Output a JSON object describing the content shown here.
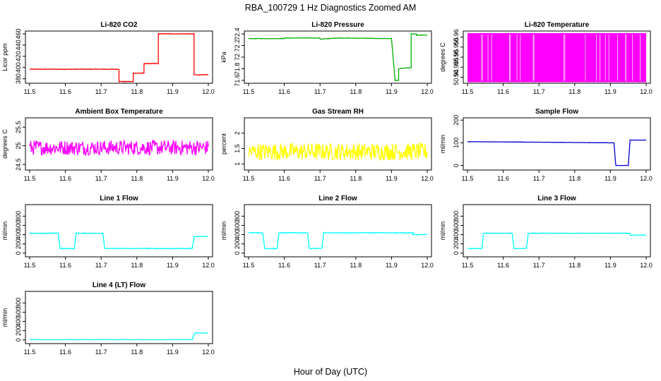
{
  "figure": {
    "title": "RBA_100729  1 Hz Diagnostics Zoomed AM",
    "xlabel": "Hour of Day (UTC)"
  },
  "chart_data": [
    {
      "type": "line",
      "title": "Li-820 CO2",
      "ylabel": "Licor ppm",
      "color": "#ff0000",
      "xlim": [
        11.5,
        12.0
      ],
      "xticks": [
        "11.5",
        "11.6",
        "11.7",
        "11.8",
        "11.9",
        "12.0"
      ],
      "ylim": [
        372,
        465
      ],
      "yticks": [
        380,
        400,
        420,
        440,
        460
      ],
      "noise": 0.6,
      "series": [
        {
          "segments": [
            [
              11.5,
              11.65,
              397,
              397
            ],
            [
              11.65,
              11.75,
              397,
              397
            ],
            [
              11.75,
              11.76,
              375,
              375
            ],
            [
              11.76,
              11.79,
              375,
              375
            ],
            [
              11.79,
              11.82,
              390,
              390
            ],
            [
              11.82,
              11.85,
              407,
              407
            ],
            [
              11.85,
              11.86,
              407,
              407
            ],
            [
              11.86,
              11.96,
              460,
              460
            ],
            [
              11.96,
              12.0,
              387,
              387
            ]
          ]
        }
      ]
    },
    {
      "type": "line",
      "title": "Li-820 Pressure",
      "ylabel": "kPa",
      "color": "#00b000",
      "xlim": [
        11.5,
        12.0
      ],
      "xticks": [
        "11.5",
        "11.6",
        "11.7",
        "11.8",
        "11.9",
        "12.0"
      ],
      "ylim": [
        71.55,
        72.45
      ],
      "yticks": [
        71.6,
        71.8,
        72.0,
        72.2,
        72.4
      ],
      "noise": 0.004,
      "series": [
        {
          "segments": [
            [
              11.5,
              11.6,
              72.32,
              72.32
            ],
            [
              11.6,
              11.7,
              72.33,
              72.33
            ],
            [
              11.7,
              11.75,
              72.31,
              72.33
            ],
            [
              11.75,
              11.9,
              72.33,
              72.32
            ],
            [
              11.9,
              11.91,
              72.32,
              71.6
            ],
            [
              11.91,
              11.92,
              71.6,
              71.6
            ],
            [
              11.92,
              11.955,
              71.8,
              71.82
            ],
            [
              11.955,
              11.97,
              72.4,
              72.4
            ],
            [
              11.97,
              12.0,
              72.38,
              72.38
            ]
          ]
        }
      ]
    },
    {
      "type": "line",
      "title": "Li-820 Temperature",
      "ylabel": "degrees C",
      "color": "#ff00ff",
      "xlim": [
        11.5,
        12.0
      ],
      "xticks": [
        "11.5",
        "11.6",
        "11.7",
        "11.8",
        "11.9",
        "12.0"
      ],
      "ylim": [
        50.937,
        50.963
      ],
      "yticks": [
        50.94,
        50.945,
        50.95,
        50.955,
        50.96
      ],
      "noise": 0.0,
      "series": [
        {
          "fill": true,
          "values": [
            50.9375,
            50.962
          ]
        }
      ]
    },
    {
      "type": "line",
      "title": "Ambient Box Temperature",
      "ylabel": "degrees C",
      "color": "#ff00ff",
      "xlim": [
        11.5,
        12.0
      ],
      "xticks": [
        "11.5",
        "11.6",
        "11.7",
        "11.8",
        "11.9",
        "12.0"
      ],
      "ylim": [
        24.35,
        25.75
      ],
      "yticks": [
        24.5,
        25.0,
        25.5
      ],
      "noise": 0.2,
      "series": [
        {
          "segments": [
            [
              11.5,
              12.0,
              24.95,
              24.95
            ]
          ]
        }
      ]
    },
    {
      "type": "line",
      "title": "Gas Stream RH",
      "ylabel": "percent",
      "color": "#ffff00",
      "xlim": [
        11.5,
        12.0
      ],
      "xticks": [
        "11.5",
        "11.6",
        "11.7",
        "11.8",
        "11.9",
        "12.0"
      ],
      "ylim": [
        0.8,
        2.5
      ],
      "yticks": [
        1.0,
        1.5,
        2.0
      ],
      "noise": 0.28,
      "series": [
        {
          "segments": [
            [
              11.5,
              12.0,
              1.4,
              1.4
            ]
          ]
        }
      ]
    },
    {
      "type": "line",
      "title": "Sample Flow",
      "ylabel": "ml/min",
      "color": "#0000cc",
      "xlim": [
        11.5,
        12.0
      ],
      "xticks": [
        "11.5",
        "11.6",
        "11.7",
        "11.8",
        "11.9",
        "12.0"
      ],
      "ylim": [
        -20,
        210
      ],
      "yticks": [
        0,
        100,
        200
      ],
      "noise": 0.6,
      "series": [
        {
          "segments": [
            [
              11.5,
              11.91,
              105,
              100
            ],
            [
              11.91,
              11.915,
              100,
              0
            ],
            [
              11.915,
              11.95,
              0,
              0
            ],
            [
              11.95,
              11.955,
              0,
              112
            ],
            [
              11.955,
              12.0,
              112,
              112
            ]
          ]
        }
      ]
    },
    {
      "type": "line",
      "title": "Line 1 Flow",
      "ylabel": "ml/min",
      "color": "#00ffff",
      "xlim": [
        11.5,
        12.0
      ],
      "xticks": [
        "11.5",
        "11.6",
        "11.7",
        "11.8",
        "11.9",
        "12.0"
      ],
      "ylim": [
        -80,
        1050
      ],
      "yticks": [
        0,
        200,
        400,
        600,
        800
      ],
      "noise": 8,
      "series": [
        {
          "segments": [
            [
              11.5,
              11.58,
              430,
              430
            ],
            [
              11.58,
              11.585,
              430,
              100
            ],
            [
              11.585,
              11.625,
              100,
              100
            ],
            [
              11.625,
              11.63,
              100,
              430
            ],
            [
              11.63,
              11.705,
              430,
              430
            ],
            [
              11.705,
              11.71,
              430,
              100
            ],
            [
              11.71,
              11.955,
              100,
              100
            ],
            [
              11.955,
              11.96,
              100,
              360
            ],
            [
              11.96,
              12.0,
              360,
              360
            ]
          ]
        }
      ]
    },
    {
      "type": "line",
      "title": "Line 2 Flow",
      "ylabel": "ml/min",
      "color": "#00ffff",
      "xlim": [
        11.5,
        12.0
      ],
      "xticks": [
        "11.5",
        "11.6",
        "11.7",
        "11.8",
        "11.9",
        "12.0"
      ],
      "ylim": [
        -80,
        1050
      ],
      "yticks": [
        0,
        200,
        400,
        600,
        800
      ],
      "noise": 8,
      "series": [
        {
          "segments": [
            [
              11.5,
              11.54,
              440,
              440
            ],
            [
              11.54,
              11.545,
              440,
              100
            ],
            [
              11.545,
              11.58,
              100,
              100
            ],
            [
              11.58,
              11.585,
              100,
              440
            ],
            [
              11.585,
              11.665,
              440,
              440
            ],
            [
              11.665,
              11.67,
              440,
              100
            ],
            [
              11.67,
              11.705,
              100,
              100
            ],
            [
              11.705,
              11.71,
              100,
              440
            ],
            [
              11.71,
              11.96,
              440,
              440
            ],
            [
              11.96,
              12.0,
              400,
              400
            ]
          ]
        }
      ]
    },
    {
      "type": "line",
      "title": "Line 3 Flow",
      "ylabel": "ml/min",
      "color": "#00ffff",
      "xlim": [
        11.5,
        12.0
      ],
      "xticks": [
        "11.5",
        "11.6",
        "11.7",
        "11.8",
        "11.9",
        "12.0"
      ],
      "ylim": [
        -80,
        1050
      ],
      "yticks": [
        0,
        200,
        400,
        600,
        800
      ],
      "noise": 6,
      "series": [
        {
          "segments": [
            [
              11.5,
              11.54,
              100,
              100
            ],
            [
              11.54,
              11.545,
              100,
              430
            ],
            [
              11.545,
              11.625,
              430,
              430
            ],
            [
              11.625,
              11.63,
              430,
              100
            ],
            [
              11.63,
              11.665,
              100,
              100
            ],
            [
              11.665,
              11.67,
              100,
              430
            ],
            [
              11.67,
              11.955,
              430,
              430
            ],
            [
              11.955,
              12.0,
              390,
              390
            ]
          ]
        }
      ]
    },
    {
      "type": "line",
      "title": "Line 4 (LT) Flow",
      "ylabel": "ml/min",
      "color": "#00ffff",
      "xlim": [
        11.5,
        12.0
      ],
      "xticks": [
        "11.5",
        "11.6",
        "11.7",
        "11.8",
        "11.9",
        "12.0"
      ],
      "ylim": [
        -80,
        1050
      ],
      "yticks": [
        0,
        200,
        400,
        600,
        800
      ],
      "noise": 2,
      "series": [
        {
          "segments": [
            [
              11.5,
              11.955,
              5,
              5
            ],
            [
              11.955,
              11.96,
              5,
              120
            ],
            [
              11.96,
              11.965,
              120,
              150
            ],
            [
              11.965,
              12.0,
              150,
              150
            ]
          ]
        }
      ]
    }
  ]
}
